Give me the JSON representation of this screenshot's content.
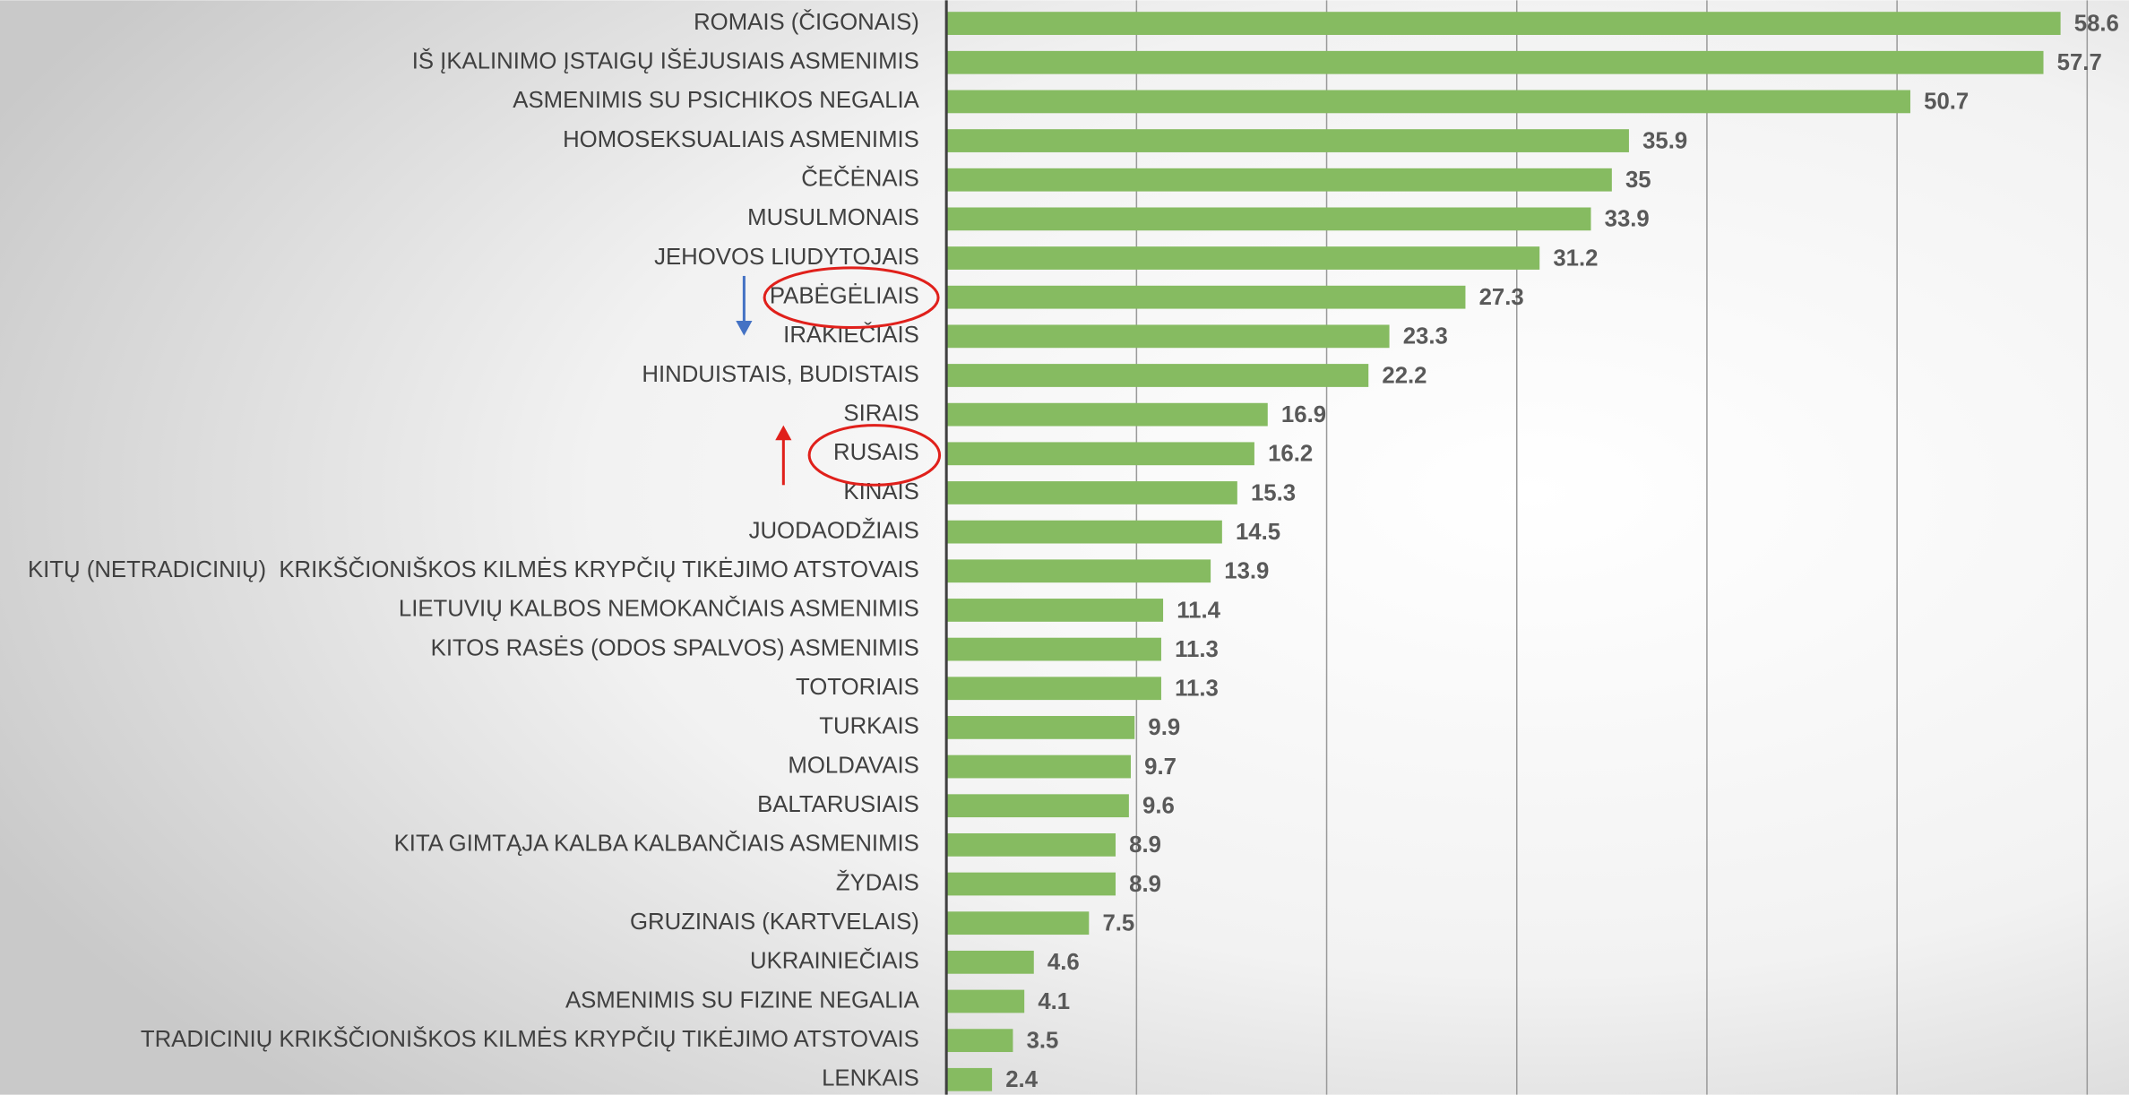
{
  "chart_data": {
    "type": "hbar",
    "categories": [
      "ROMAIS (ČIGONAIS)",
      "IŠ ĮKALINIMO ĮSTAIGŲ IŠĖJUSIAIS ASMENIMIS",
      "ASMENIMIS SU PSICHIKOS NEGALIA",
      "HOMOSEKSUALIAIS ASMENIMIS",
      "ČEČĖNAIS",
      "MUSULMONAIS",
      "JEHOVOS LIUDYTOJAIS",
      "PABĖGĖLIAIS",
      "IRAKIEČIAIS",
      "HINDUISTAIS, BUDISTAIS",
      "SIRAIS",
      "RUSAIS",
      "KINAIS",
      "JUODAODŽIAIS",
      "KITŲ (NETRADICINIŲ)  KRIKŠČIONIŠKOS KILMĖS KRYPČIŲ TIKĖJIMO ATSTOVAIS",
      "LIETUVIŲ KALBOS NEMOKANČIAIS ASMENIMIS",
      "KITOS RASĖS (ODOS SPALVOS) ASMENIMIS",
      "TOTORIAIS",
      "TURKAIS",
      "MOLDAVAIS",
      "BALTARUSIAIS",
      "KITA GIMTĄJA KALBA KALBANČIAIS ASMENIMIS",
      "ŽYDAIS",
      "GRUZINAIS (KARTVELAIS)",
      "UKRAINIEČIAIS",
      "ASMENIMIS SU FIZINE NEGALIA",
      "TRADICINIŲ KRIKŠČIONIŠKOS KILMĖS KRYPČIŲ TIKĖJIMO ATSTOVAIS",
      "LENKAIS"
    ],
    "values": [
      58.6,
      57.7,
      50.7,
      35.9,
      35,
      33.9,
      31.2,
      27.3,
      23.3,
      22.2,
      16.9,
      16.2,
      15.3,
      14.5,
      13.9,
      11.4,
      11.3,
      11.3,
      9.9,
      9.7,
      9.6,
      8.9,
      8.9,
      7.5,
      4.6,
      4.1,
      3.5,
      2.4
    ],
    "color": "#86bb61",
    "xlim": [
      0,
      62.2
    ],
    "xticks": [
      0,
      10,
      20,
      30,
      40,
      50,
      60
    ],
    "grid": true,
    "show_tick_labels": false
  }
}
